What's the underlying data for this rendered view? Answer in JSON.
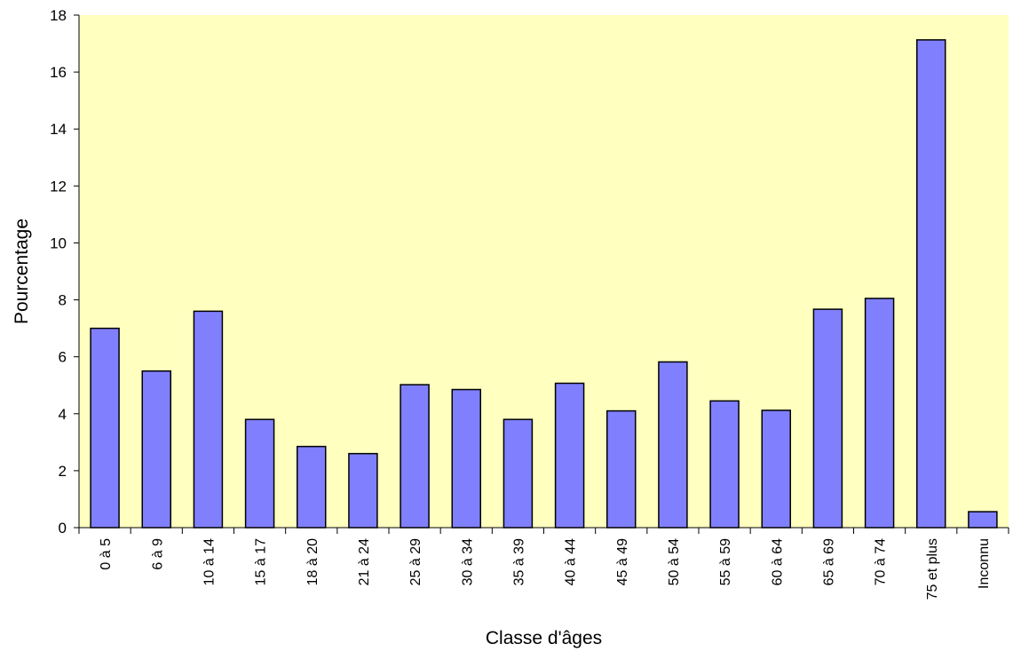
{
  "chart_data": {
    "type": "bar",
    "title": "",
    "xlabel": "Classe d'âges",
    "ylabel": "Pourcentage",
    "categories": [
      "0 à 5",
      "6 à 9",
      "10 à 14",
      "15 à 17",
      "18 à 20",
      "21 à 24",
      "25 à 29",
      "30 à 34",
      "35 à 39",
      "40 à 44",
      "45 à 49",
      "50 à 54",
      "55 à 59",
      "60 à 64",
      "65 à 69",
      "70 à 74",
      "75 et plus",
      "Inconnu"
    ],
    "values": [
      7.0,
      5.5,
      7.6,
      3.8,
      2.85,
      2.6,
      5.02,
      4.85,
      3.8,
      5.07,
      4.1,
      5.82,
      4.45,
      4.12,
      7.67,
      8.05,
      17.13,
      0.56
    ],
    "ylim": [
      0,
      18
    ],
    "yticks": [
      0,
      2,
      4,
      6,
      8,
      10,
      12,
      14,
      16,
      18
    ],
    "grid": false,
    "legend": "none",
    "colors": {
      "plot_background": "#FFFFC0",
      "bar_fill": "#8080FF",
      "bar_stroke": "#000000",
      "axis": "#000000"
    }
  }
}
